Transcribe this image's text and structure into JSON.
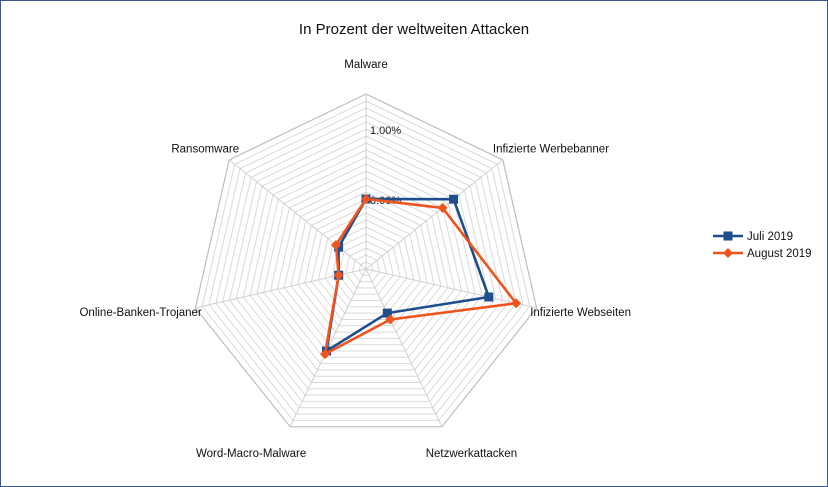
{
  "chart_data": {
    "type": "radar",
    "title": "In Prozent der weltweiten Attacken",
    "categories": [
      "Malware",
      "Infizierte Werbebanner",
      "Infizierte Webseiten",
      "Netzwerkattacken",
      "Word-Macro-Malware",
      "Online-Banken-Trojaner",
      "Ransomware"
    ],
    "axis": {
      "min": -1.0,
      "max": 1.5,
      "step": 0.1
    },
    "tick_labels": [
      {
        "value": 0.0,
        "label": "0.00%"
      },
      {
        "value": 1.0,
        "label": "1.00%"
      }
    ],
    "grid": true,
    "legend_position": "right",
    "series": [
      {
        "name": "Juli 2019",
        "color": "#1f4e8c",
        "marker": "square",
        "values": [
          0.0,
          0.6,
          0.8,
          -0.3,
          0.3,
          -0.6,
          -0.5
        ]
      },
      {
        "name": "August 2019",
        "color": "#f0541e",
        "marker": "diamond",
        "values": [
          0.0,
          0.4,
          1.2,
          -0.2,
          0.35,
          -0.6,
          -0.45
        ]
      }
    ]
  }
}
